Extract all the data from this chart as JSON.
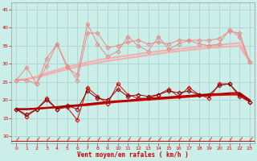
{
  "xlabel": "Vent moyen/en rafales ( km/h )",
  "xlim": [
    -0.5,
    23.5
  ],
  "ylim": [
    8,
    47
  ],
  "yticks": [
    10,
    15,
    20,
    25,
    30,
    35,
    40,
    45
  ],
  "xticks": [
    0,
    1,
    2,
    3,
    4,
    5,
    6,
    7,
    8,
    9,
    10,
    11,
    12,
    13,
    14,
    15,
    16,
    17,
    18,
    19,
    20,
    21,
    22,
    23
  ],
  "background_color": "#cceee8",
  "grid_color": "#aad4ce",
  "line_lp1": "#f0b0b0",
  "line_lp2": "#e88888",
  "line_lp3": "#f0b0b0",
  "line_dr1": "#dd0000",
  "line_dr2": "#aa0000",
  "line_dr3": "#cc0000",
  "line_dr4": "#880000",
  "s_lp_smooth1": [
    25.5,
    25.8,
    26.2,
    27.0,
    27.8,
    28.5,
    29.2,
    29.8,
    30.3,
    30.8,
    31.2,
    31.6,
    32.0,
    32.4,
    32.8,
    33.2,
    33.5,
    33.8,
    34.1,
    34.4,
    34.6,
    34.8,
    34.9,
    30.5
  ],
  "s_lp_smooth2": [
    25.5,
    25.8,
    26.5,
    27.5,
    28.3,
    29.1,
    29.8,
    30.4,
    31.0,
    31.5,
    31.9,
    32.3,
    32.7,
    33.1,
    33.5,
    33.8,
    34.1,
    34.4,
    34.7,
    35.0,
    35.2,
    35.5,
    35.7,
    30.8
  ],
  "s_lp_jagged1": [
    25.5,
    29.0,
    24.5,
    29.5,
    35.5,
    29.0,
    27.0,
    41.0,
    35.5,
    32.0,
    33.5,
    37.5,
    35.0,
    33.5,
    37.5,
    34.0,
    35.5,
    36.5,
    35.5,
    35.0,
    35.5,
    39.5,
    37.5,
    30.5
  ],
  "s_lp_jagged2": [
    25.5,
    25.5,
    24.5,
    31.5,
    35.5,
    29.5,
    25.5,
    38.5,
    38.5,
    34.5,
    35.0,
    36.0,
    36.5,
    35.5,
    36.0,
    35.5,
    36.5,
    36.5,
    36.5,
    36.5,
    37.0,
    39.0,
    38.5,
    30.5
  ],
  "s_dr_smooth1": [
    17.5,
    17.5,
    17.6,
    17.8,
    18.0,
    18.2,
    18.4,
    18.6,
    18.9,
    19.2,
    19.5,
    19.7,
    19.9,
    20.1,
    20.3,
    20.5,
    20.7,
    20.9,
    21.1,
    21.3,
    21.4,
    21.5,
    21.5,
    20.0
  ],
  "s_dr_smooth2": [
    17.5,
    17.5,
    17.7,
    17.9,
    18.1,
    18.4,
    18.6,
    18.9,
    19.2,
    19.5,
    19.7,
    19.9,
    20.2,
    20.4,
    20.6,
    20.8,
    21.0,
    21.2,
    21.4,
    21.6,
    21.7,
    21.9,
    22.0,
    20.0
  ],
  "s_dr_jagged1": [
    17.5,
    15.5,
    17.5,
    20.5,
    17.5,
    18.0,
    14.5,
    23.5,
    21.0,
    19.0,
    24.5,
    21.5,
    20.5,
    20.5,
    21.5,
    23.0,
    21.0,
    23.5,
    21.5,
    20.5,
    24.5,
    24.5,
    21.0,
    19.5
  ],
  "s_dr_jagged2": [
    17.5,
    16.0,
    17.5,
    20.0,
    17.5,
    18.5,
    17.5,
    22.5,
    20.5,
    20.0,
    23.0,
    21.0,
    21.5,
    21.0,
    21.5,
    22.5,
    22.0,
    22.5,
    21.5,
    21.5,
    24.0,
    24.5,
    21.5,
    19.5
  ]
}
